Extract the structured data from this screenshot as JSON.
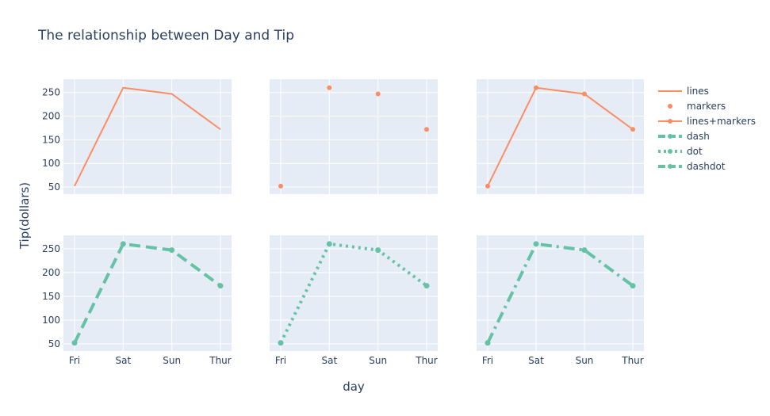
{
  "chart_data": {
    "type": "line",
    "title": "The relationship between Day and Tip",
    "xlabel": "day",
    "ylabel": "Tip(dollars)",
    "categories": [
      "Fri",
      "Sat",
      "Sun",
      "Thur"
    ],
    "yticks": [
      50,
      100,
      150,
      200,
      250
    ],
    "ylim": [
      35,
      278
    ],
    "values": [
      52,
      260,
      247,
      172
    ],
    "colors": {
      "orange": "#fc8d62",
      "teal": "#66c2a5",
      "plot_bg": "#e5ecf6",
      "grid": "#ffffff",
      "text": "#2a3f5f"
    },
    "subplots": [
      {
        "name": "lines",
        "mode": "lines",
        "color": "orange",
        "dash": "solid",
        "row": 1,
        "col": 1
      },
      {
        "name": "markers",
        "mode": "markers",
        "color": "orange",
        "dash": "solid",
        "row": 1,
        "col": 2
      },
      {
        "name": "lines+markers",
        "mode": "lines+markers",
        "color": "orange",
        "dash": "solid",
        "row": 1,
        "col": 3
      },
      {
        "name": "dash",
        "mode": "lines+markers",
        "color": "teal",
        "dash": "dash",
        "row": 2,
        "col": 1
      },
      {
        "name": "dot",
        "mode": "lines+markers",
        "color": "teal",
        "dash": "dot",
        "row": 2,
        "col": 2
      },
      {
        "name": "dashdot",
        "mode": "lines+markers",
        "color": "teal",
        "dash": "dashdot",
        "row": 2,
        "col": 3
      }
    ],
    "legend": [
      "lines",
      "markers",
      "lines+markers",
      "dash",
      "dot",
      "dashdot"
    ],
    "legend_position": "right",
    "grid": true
  }
}
